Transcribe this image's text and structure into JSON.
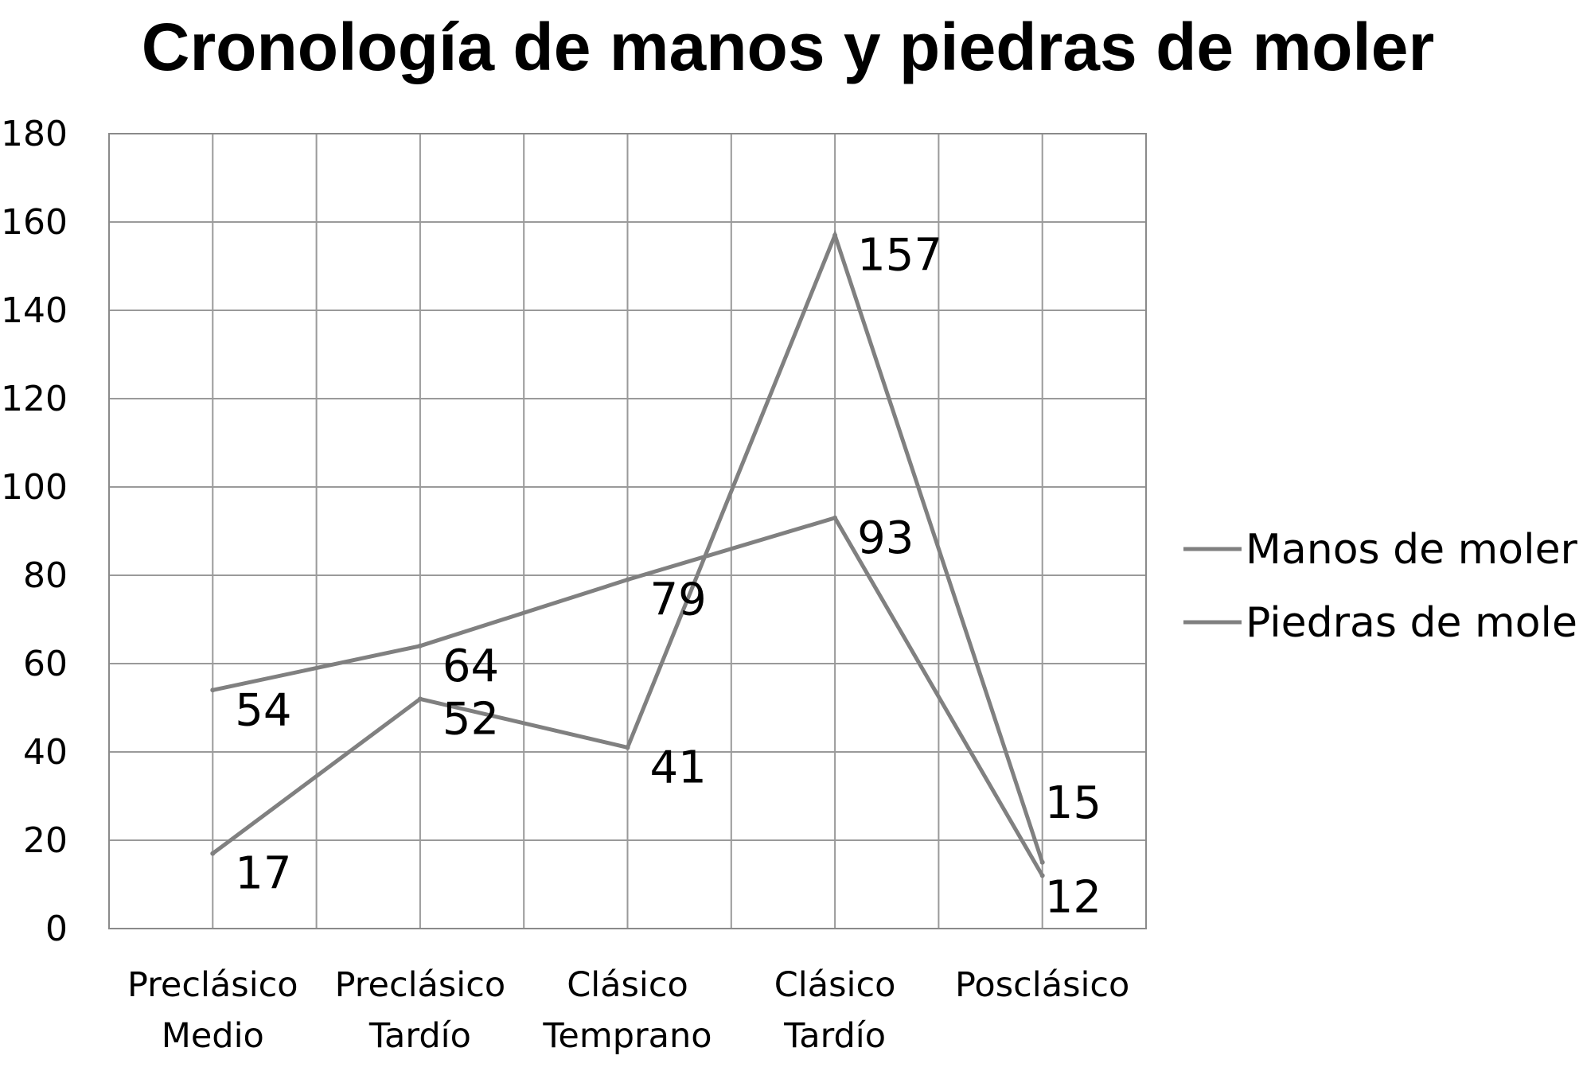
{
  "chart_data": {
    "type": "line",
    "title": "Cronología de manos y piedras de moler",
    "xlabel": "",
    "ylabel": "",
    "categories": [
      [
        "Preclásico",
        "Medio"
      ],
      [
        "Preclásico",
        "Tardío"
      ],
      [
        "Clásico",
        "Temprano"
      ],
      [
        "Clásico",
        "Tardío"
      ],
      [
        "Posclásico"
      ]
    ],
    "ylim": [
      0,
      180
    ],
    "yticks": [
      0,
      20,
      40,
      60,
      80,
      100,
      120,
      140,
      160,
      180
    ],
    "grid": true,
    "legend_position": "right",
    "series": [
      {
        "name": "Manos de moler",
        "values": [
          17,
          52,
          41,
          157,
          15
        ],
        "color": "#808080"
      },
      {
        "name": "Piedras de moler",
        "values": [
          54,
          64,
          79,
          93,
          12
        ],
        "color": "#808080"
      }
    ],
    "data_labels": true
  }
}
